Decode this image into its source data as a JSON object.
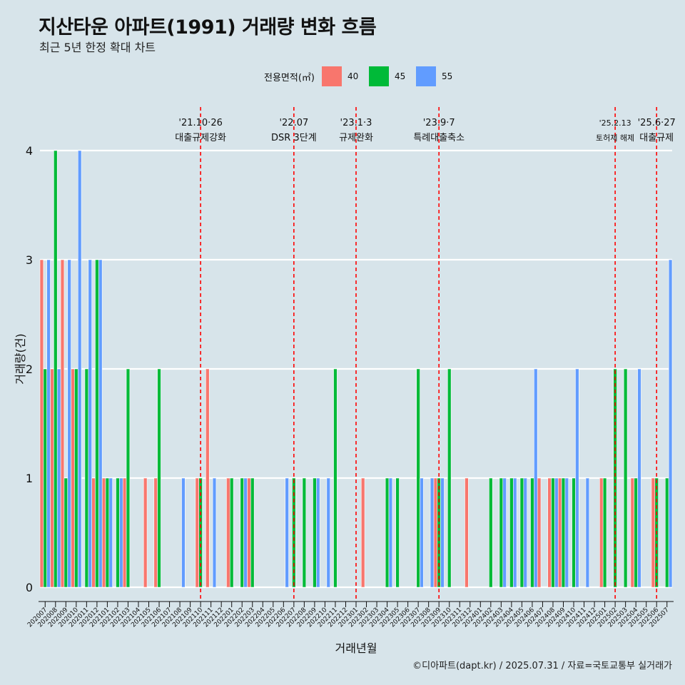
{
  "title": "지산타운 아파트(1991) 거래량 변화 흐름",
  "subtitle": "최근 5년 한정 확대 차트",
  "caption": "©디아파트(dapt.kr) / 2025.07.31 / 자료=국토교통부 실거래가",
  "legend": {
    "title": "전용면적(㎡)",
    "items": [
      {
        "label": "40",
        "color": "#f8766d"
      },
      {
        "label": "45",
        "color": "#00ba38"
      },
      {
        "label": "55",
        "color": "#619cff"
      }
    ]
  },
  "chart_data": {
    "type": "bar",
    "xlabel": "거래년월",
    "ylabel": "거래량(건)",
    "ylim": [
      0,
      4
    ],
    "yticks": [
      0,
      1,
      2,
      3,
      4
    ],
    "grid": true,
    "legend_position": "top",
    "categories": [
      "202007",
      "202008",
      "202009",
      "202010",
      "202011",
      "202012",
      "202101",
      "202102",
      "202103",
      "202104",
      "202105",
      "202106",
      "202107",
      "202108",
      "202109",
      "202110",
      "202111",
      "202112",
      "202201",
      "202202",
      "202203",
      "202204",
      "202205",
      "202206",
      "202207",
      "202208",
      "202209",
      "202210",
      "202211",
      "202212",
      "202301",
      "202302",
      "202303",
      "202304",
      "202305",
      "202306",
      "202307",
      "202308",
      "202309",
      "202310",
      "202311",
      "202312",
      "202401",
      "202402",
      "202403",
      "202404",
      "202405",
      "202406",
      "202407",
      "202408",
      "202409",
      "202410",
      "202411",
      "202412",
      "202501",
      "202502",
      "202503",
      "202504",
      "202505",
      "202506",
      "202507"
    ],
    "series": [
      {
        "name": "40",
        "color": "#f8766d",
        "values": [
          3,
          2,
          3,
          2,
          0,
          1,
          1,
          0,
          1,
          0,
          1,
          1,
          0,
          0,
          0,
          1,
          2,
          0,
          1,
          0,
          1,
          0,
          0,
          0,
          0,
          0,
          0,
          0,
          0,
          0,
          0,
          1,
          0,
          0,
          0,
          0,
          0,
          0,
          1,
          0,
          0,
          1,
          0,
          0,
          0,
          0,
          0,
          0,
          1,
          1,
          1,
          0,
          0,
          0,
          1,
          0,
          0,
          1,
          0,
          1,
          0
        ]
      },
      {
        "name": "45",
        "color": "#00ba38",
        "values": [
          2,
          4,
          1,
          2,
          2,
          3,
          1,
          1,
          2,
          0,
          0,
          2,
          0,
          0,
          0,
          1,
          0,
          0,
          1,
          1,
          1,
          0,
          0,
          0,
          1,
          1,
          1,
          0,
          2,
          0,
          0,
          0,
          0,
          1,
          1,
          0,
          2,
          0,
          1,
          2,
          0,
          0,
          0,
          1,
          1,
          1,
          1,
          1,
          0,
          1,
          1,
          1,
          0,
          0,
          1,
          2,
          2,
          1,
          0,
          1,
          1
        ]
      },
      {
        "name": "55",
        "color": "#619cff",
        "values": [
          3,
          2,
          3,
          4,
          3,
          3,
          1,
          1,
          0,
          0,
          0,
          0,
          0,
          1,
          0,
          0,
          1,
          0,
          0,
          1,
          0,
          0,
          0,
          1,
          0,
          0,
          1,
          1,
          0,
          0,
          0,
          0,
          0,
          1,
          0,
          0,
          1,
          1,
          1,
          0,
          0,
          0,
          0,
          0,
          1,
          1,
          1,
          2,
          0,
          1,
          1,
          2,
          1,
          0,
          0,
          0,
          0,
          2,
          0,
          0,
          3
        ]
      }
    ],
    "annotations": [
      {
        "at": "202110",
        "date": "'21.10·26",
        "label": "대출규제강화"
      },
      {
        "at": "202207",
        "date": "'22.07",
        "label": "DSR 3단계"
      },
      {
        "at": "202301",
        "date": "'23.1·3",
        "label": "규제완화"
      },
      {
        "at": "202309",
        "date": "'23.9·7",
        "label": "특례대출축소"
      },
      {
        "at": "202502",
        "date": "'25.2.13",
        "label": "토허제 해제"
      },
      {
        "at": "202506",
        "date": "'25.6·27",
        "label": "대출규제"
      }
    ]
  }
}
